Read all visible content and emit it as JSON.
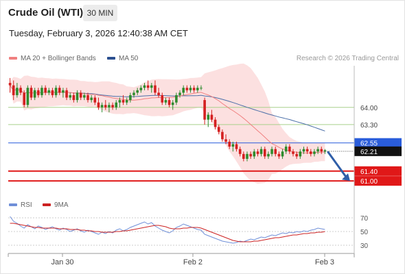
{
  "header": {
    "title": "Crude Oil (WTI)",
    "timeframe": "30 MIN",
    "datetime": "Tuesday, February 3, 2026 12:40:38 AM CET"
  },
  "legend": {
    "ma20": "MA 20 + Bollinger Bands",
    "ma50": "MA 50",
    "credit": "Research © 2026 Trading Central"
  },
  "rsi_legend": {
    "rsi": "RSI",
    "ma": "9MA"
  },
  "colors": {
    "candle_up": "#2e8b2e",
    "candle_down": "#d42020",
    "ma20": "#f08080",
    "ma50": "#4a6ea8",
    "bollinger": "#fbd5d5",
    "support": "#e01818",
    "resistance_blue": "#2a5ddb",
    "level_green": "#a8d08a",
    "arrow": "#2f5ea8"
  },
  "chart_data": [
    {
      "type": "candlestick",
      "title": "Crude Oil (WTI)",
      "timeframe": "30 MIN",
      "x_labels": [
        "Jan 30",
        "Feb 2",
        "Feb 3"
      ],
      "ylim": [
        60.5,
        65.7
      ],
      "price_levels": [
        {
          "value": 64.0,
          "label": "64.00",
          "style": "green-line"
        },
        {
          "value": 63.3,
          "label": "63.30",
          "style": "green-line"
        },
        {
          "value": 62.55,
          "label": "62.55",
          "style": "blue-line-badge"
        },
        {
          "value": 61.4,
          "label": "61.40",
          "style": "red-line-badge"
        },
        {
          "value": 61.0,
          "label": "61.00",
          "style": "red-line-badge"
        }
      ],
      "last_price": {
        "value": 62.21,
        "label": "62.21"
      },
      "trend": "down",
      "arrow": {
        "from": 62.2,
        "to": 61.0
      },
      "candles": [
        [
          65.0,
          65.2,
          64.6,
          64.9
        ],
        [
          64.9,
          65.1,
          64.3,
          64.5
        ],
        [
          64.5,
          65.0,
          64.4,
          64.8
        ],
        [
          64.8,
          64.9,
          64.5,
          64.6
        ],
        [
          64.6,
          64.7,
          64.0,
          64.1
        ],
        [
          64.1,
          64.9,
          64.0,
          64.8
        ],
        [
          64.8,
          64.9,
          64.3,
          64.4
        ],
        [
          64.4,
          64.8,
          64.3,
          64.7
        ],
        [
          64.7,
          64.8,
          64.4,
          64.5
        ],
        [
          64.5,
          64.9,
          64.4,
          64.8
        ],
        [
          64.8,
          64.9,
          64.5,
          64.6
        ],
        [
          64.6,
          64.8,
          64.5,
          64.7
        ],
        [
          64.7,
          64.8,
          64.4,
          64.5
        ],
        [
          64.5,
          64.9,
          64.4,
          64.8
        ],
        [
          64.8,
          64.9,
          64.5,
          64.6
        ],
        [
          64.6,
          64.8,
          64.4,
          64.7
        ],
        [
          64.7,
          64.8,
          64.3,
          64.4
        ],
        [
          64.4,
          64.6,
          64.3,
          64.5
        ],
        [
          64.5,
          64.6,
          64.2,
          64.3
        ],
        [
          64.3,
          64.7,
          64.2,
          64.6
        ],
        [
          64.6,
          64.7,
          64.3,
          64.4
        ],
        [
          64.4,
          64.6,
          64.3,
          64.5
        ],
        [
          64.5,
          64.6,
          64.2,
          64.3
        ],
        [
          64.3,
          64.5,
          64.2,
          64.4
        ],
        [
          64.4,
          64.5,
          64.1,
          64.2
        ],
        [
          64.2,
          64.4,
          63.9,
          64.0
        ],
        [
          64.0,
          64.2,
          63.8,
          64.1
        ],
        [
          64.1,
          64.3,
          63.9,
          64.0
        ],
        [
          64.0,
          64.2,
          63.8,
          64.1
        ],
        [
          64.1,
          64.2,
          63.9,
          64.0
        ],
        [
          64.0,
          64.3,
          63.9,
          64.2
        ],
        [
          64.2,
          64.4,
          64.0,
          64.3
        ],
        [
          64.3,
          64.5,
          64.1,
          64.2
        ],
        [
          64.2,
          64.4,
          64.1,
          64.3
        ],
        [
          64.3,
          64.6,
          64.2,
          64.5
        ],
        [
          64.5,
          64.7,
          64.4,
          64.6
        ],
        [
          64.6,
          64.8,
          64.5,
          64.7
        ],
        [
          64.7,
          64.9,
          64.6,
          64.8
        ],
        [
          64.8,
          65.0,
          64.7,
          64.9
        ],
        [
          64.9,
          65.1,
          64.7,
          64.8
        ],
        [
          64.8,
          65.0,
          64.6,
          64.9
        ],
        [
          64.9,
          65.1,
          64.5,
          64.6
        ],
        [
          64.6,
          64.8,
          64.4,
          64.5
        ],
        [
          64.5,
          64.6,
          64.1,
          64.2
        ],
        [
          64.2,
          64.4,
          64.1,
          64.3
        ],
        [
          64.3,
          64.4,
          64.0,
          64.1
        ],
        [
          64.1,
          64.3,
          63.9,
          64.2
        ],
        [
          64.2,
          64.6,
          64.1,
          64.5
        ],
        [
          64.5,
          64.7,
          64.4,
          64.6
        ],
        [
          64.6,
          64.9,
          64.5,
          64.8
        ],
        [
          64.8,
          64.9,
          64.6,
          64.7
        ],
        [
          64.7,
          64.9,
          64.6,
          64.8
        ],
        [
          64.8,
          64.9,
          64.6,
          64.7
        ],
        [
          64.7,
          64.9,
          64.6,
          64.8
        ],
        [
          64.8,
          64.9,
          64.7,
          64.8
        ],
        [
          64.3,
          64.4,
          63.3,
          63.5
        ],
        [
          63.5,
          63.8,
          63.2,
          63.7
        ],
        [
          63.7,
          63.9,
          63.4,
          63.5
        ],
        [
          63.5,
          63.6,
          63.1,
          63.2
        ],
        [
          63.2,
          63.3,
          62.9,
          63.0
        ],
        [
          63.0,
          63.1,
          62.6,
          62.7
        ],
        [
          62.7,
          62.9,
          62.5,
          62.6
        ],
        [
          62.6,
          62.7,
          62.3,
          62.4
        ],
        [
          62.4,
          62.6,
          62.2,
          62.5
        ],
        [
          62.5,
          62.6,
          62.2,
          62.3
        ],
        [
          62.3,
          62.4,
          62.0,
          62.1
        ],
        [
          62.1,
          62.2,
          61.8,
          61.9
        ],
        [
          61.9,
          62.2,
          61.8,
          62.1
        ],
        [
          62.1,
          62.2,
          61.9,
          62.0
        ],
        [
          62.0,
          62.3,
          61.9,
          62.2
        ],
        [
          62.2,
          62.3,
          62.0,
          62.1
        ],
        [
          62.1,
          62.4,
          62.0,
          62.3
        ],
        [
          62.3,
          62.4,
          61.9,
          62.0
        ],
        [
          62.0,
          62.2,
          61.9,
          62.1
        ],
        [
          62.1,
          62.4,
          62.0,
          62.3
        ],
        [
          62.3,
          62.4,
          62.0,
          62.1
        ],
        [
          62.1,
          62.2,
          61.9,
          62.0
        ],
        [
          62.0,
          62.3,
          61.9,
          62.2
        ],
        [
          62.2,
          62.5,
          62.1,
          62.4
        ],
        [
          62.4,
          62.5,
          62.1,
          62.2
        ],
        [
          62.2,
          62.3,
          62.0,
          62.1
        ],
        [
          62.1,
          62.2,
          61.9,
          62.0
        ],
        [
          62.0,
          62.3,
          61.9,
          62.2
        ],
        [
          62.2,
          62.4,
          62.1,
          62.3
        ],
        [
          62.3,
          62.4,
          62.1,
          62.2
        ],
        [
          62.2,
          62.3,
          62.0,
          62.1
        ],
        [
          62.1,
          62.3,
          62.0,
          62.2
        ],
        [
          62.2,
          62.4,
          62.1,
          62.3
        ],
        [
          62.3,
          62.4,
          62.1,
          62.2
        ],
        [
          62.2,
          62.3,
          62.1,
          62.25
        ]
      ]
    },
    {
      "type": "line",
      "title": "RSI",
      "ylim": [
        20,
        80
      ],
      "yticks": [
        30,
        50,
        70
      ],
      "series": [
        {
          "name": "RSI",
          "color": "#6f8fd8",
          "values": [
            72,
            65,
            62,
            58,
            55,
            60,
            57,
            54,
            58,
            56,
            53,
            55,
            57,
            54,
            52,
            55,
            53,
            50,
            52,
            54,
            51,
            49,
            52,
            50,
            48,
            46,
            49,
            47,
            50,
            48,
            52,
            54,
            51,
            53,
            56,
            58,
            60,
            62,
            64,
            61,
            63,
            58,
            55,
            52,
            50,
            48,
            51,
            56,
            58,
            61,
            59,
            57,
            55,
            53,
            52,
            46,
            44,
            42,
            40,
            38,
            36,
            35,
            34,
            33,
            34,
            36,
            35,
            37,
            39,
            38,
            40,
            42,
            41,
            43,
            45,
            44,
            46,
            48,
            47,
            49,
            48,
            50,
            49,
            51,
            50,
            52,
            53,
            55,
            54,
            53
          ]
        },
        {
          "name": "9MA",
          "color": "#cc2020",
          "values": [
            62,
            62,
            61,
            60,
            59,
            58,
            57,
            56,
            56,
            55,
            55,
            55,
            55,
            55,
            54,
            54,
            54,
            53,
            53,
            53,
            52,
            52,
            51,
            51,
            50,
            50,
            49,
            49,
            49,
            49,
            50,
            50,
            51,
            51,
            52,
            53,
            54,
            55,
            56,
            57,
            58,
            59,
            59,
            58,
            57,
            55,
            54,
            54,
            54,
            55,
            55,
            56,
            56,
            56,
            55,
            53,
            51,
            49,
            47,
            45,
            43,
            41,
            39,
            37,
            36,
            35,
            35,
            35,
            35,
            36,
            36,
            37,
            38,
            39,
            40,
            41,
            41,
            42,
            43,
            44,
            45,
            45,
            46,
            47,
            47,
            48,
            48,
            49,
            49,
            50
          ]
        }
      ]
    }
  ]
}
